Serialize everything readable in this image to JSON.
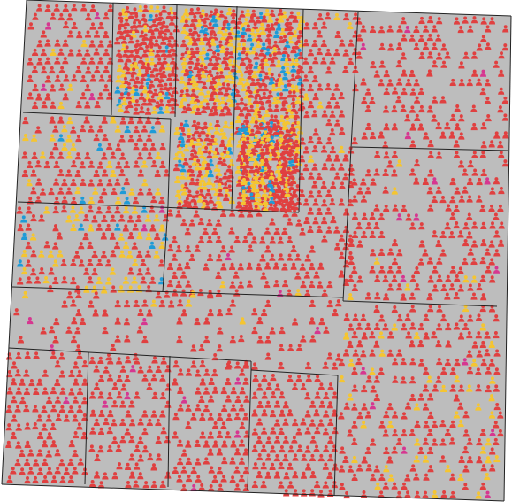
{
  "simulation": {
    "agent_icon": "person-icon",
    "background_color": "#bdbdbd",
    "wall_color": "#222222",
    "agent_colors": {
      "default": "#e04040",
      "type_a": "#f5c531",
      "type_b": "#1e9bd7",
      "type_c": "#d63790"
    },
    "legend_labels": [],
    "rooms": [
      {
        "id": "room-nw-a",
        "density": 0.85,
        "mix": {
          "type_a": 0.08,
          "type_b": 0.0,
          "type_c": 0.02
        }
      },
      {
        "id": "room-n-b",
        "density": 1.0,
        "mix": {
          "type_a": 0.2,
          "type_b": 0.05,
          "type_c": 0.0
        }
      },
      {
        "id": "room-n-c",
        "density": 1.0,
        "mix": {
          "type_a": 0.3,
          "type_b": 0.1,
          "type_c": 0.0
        }
      },
      {
        "id": "room-n-d",
        "density": 0.95,
        "mix": {
          "type_a": 0.35,
          "type_b": 0.1,
          "type_c": 0.0
        }
      },
      {
        "id": "room-n-e",
        "density": 0.7,
        "mix": {
          "type_a": 0.05,
          "type_b": 0.0,
          "type_c": 0.0
        }
      },
      {
        "id": "room-ne",
        "density": 0.55,
        "mix": {
          "type_a": 0.0,
          "type_b": 0.0,
          "type_c": 0.03
        }
      },
      {
        "id": "room-w-1",
        "density": 0.8,
        "mix": {
          "type_a": 0.25,
          "type_b": 0.05,
          "type_c": 0.0
        }
      },
      {
        "id": "room-c-1",
        "density": 0.95,
        "mix": {
          "type_a": 0.35,
          "type_b": 0.05,
          "type_c": 0.0
        }
      },
      {
        "id": "room-c-2",
        "density": 0.9,
        "mix": {
          "type_a": 0.3,
          "type_b": 0.05,
          "type_c": 0.0
        }
      },
      {
        "id": "room-e-1",
        "density": 0.55,
        "mix": {
          "type_a": 0.02,
          "type_b": 0.0,
          "type_c": 0.03
        }
      },
      {
        "id": "room-w-2",
        "density": 0.8,
        "mix": {
          "type_a": 0.3,
          "type_b": 0.05,
          "type_c": 0.02
        }
      },
      {
        "id": "room-c-3",
        "density": 0.65,
        "mix": {
          "type_a": 0.04,
          "type_b": 0.0,
          "type_c": 0.01
        }
      },
      {
        "id": "corridor",
        "density": 0.35,
        "mix": {
          "type_a": 0.03,
          "type_b": 0.0,
          "type_c": 0.04
        }
      },
      {
        "id": "room-se",
        "density": 0.6,
        "mix": {
          "type_a": 0.2,
          "type_b": 0.0,
          "type_c": 0.01
        }
      },
      {
        "id": "room-s-1",
        "density": 0.75,
        "mix": {
          "type_a": 0.0,
          "type_b": 0.0,
          "type_c": 0.03
        }
      },
      {
        "id": "room-s-2",
        "density": 0.75,
        "mix": {
          "type_a": 0.0,
          "type_b": 0.0,
          "type_c": 0.02
        }
      },
      {
        "id": "room-s-3",
        "density": 0.75,
        "mix": {
          "type_a": 0.0,
          "type_b": 0.0,
          "type_c": 0.03
        }
      },
      {
        "id": "room-s-4",
        "density": 0.8,
        "mix": {
          "type_a": 0.01,
          "type_b": 0.0,
          "type_c": 0.0
        }
      }
    ]
  }
}
